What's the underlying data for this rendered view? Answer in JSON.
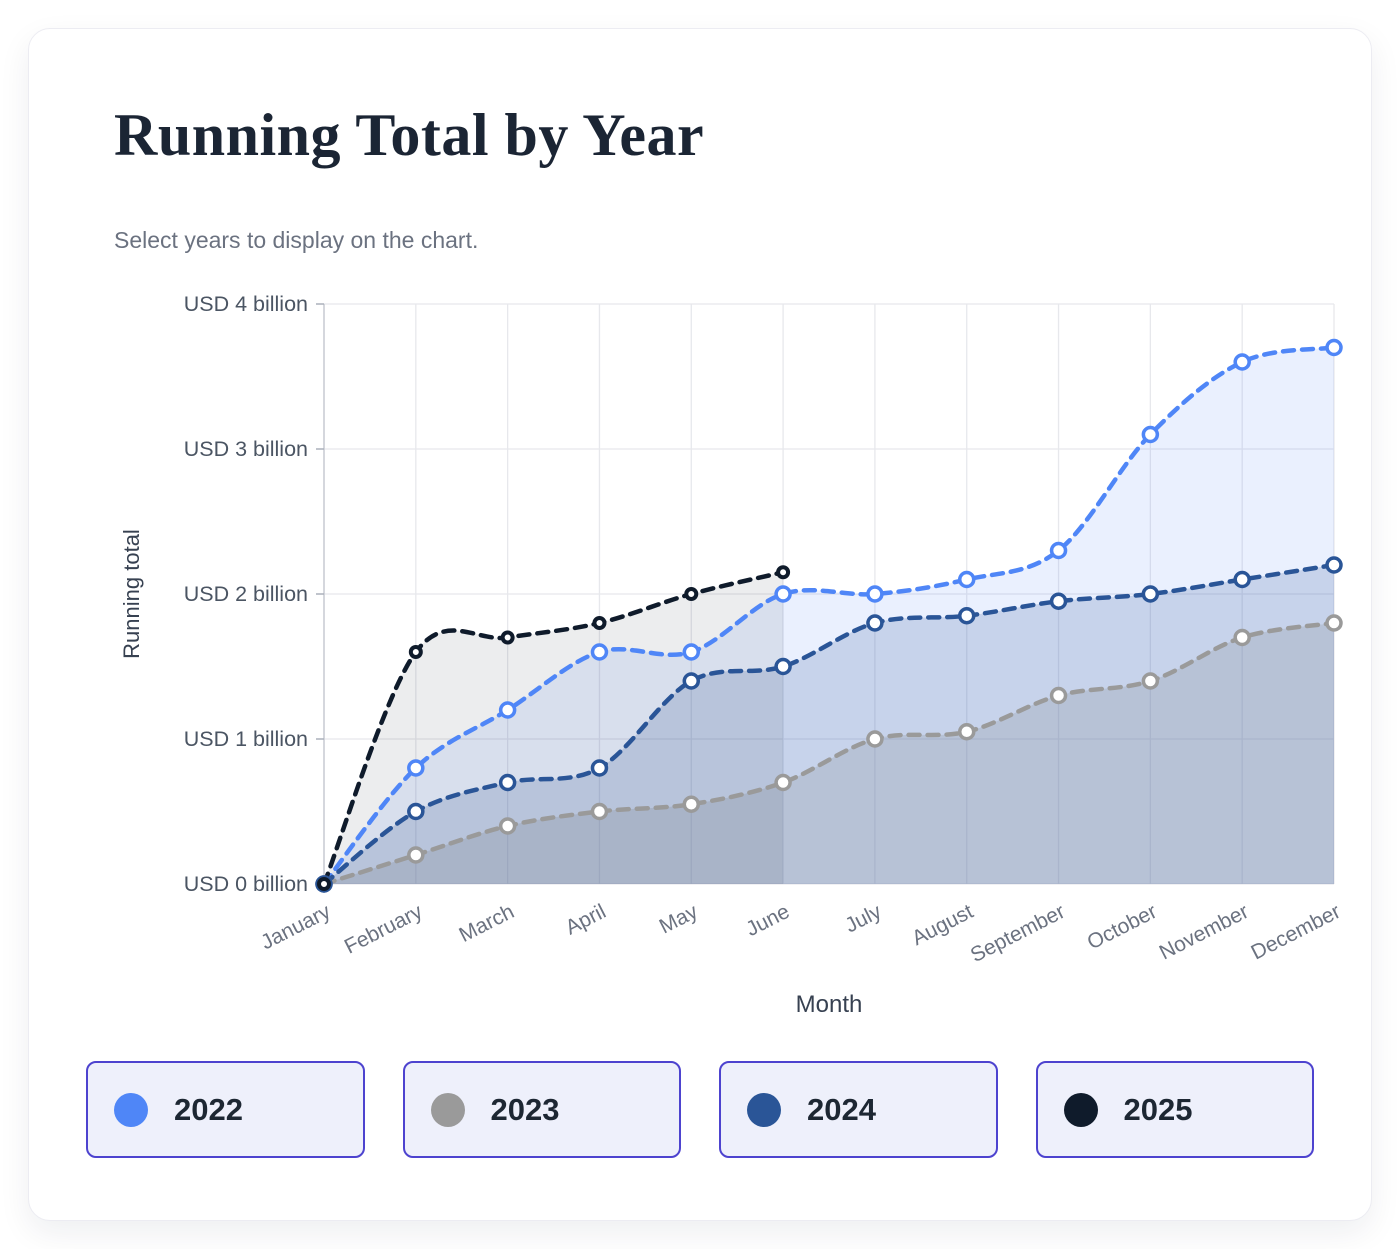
{
  "card": {
    "title": "Running Total by Year",
    "subtitle": "Select years to display on the chart."
  },
  "chart_data": {
    "type": "area",
    "x": [
      "January",
      "February",
      "March",
      "April",
      "May",
      "June",
      "July",
      "August",
      "September",
      "October",
      "November",
      "December"
    ],
    "xlabel": "Month",
    "ylabel": "Running total",
    "ylim": [
      0,
      4
    ],
    "yticks": [
      0,
      1,
      2,
      3,
      4
    ],
    "ytick_labels": [
      "USD 0 billion",
      "USD 1 billion",
      "USD 2 billion",
      "USD 3 billion",
      "USD 4 billion"
    ],
    "grid": true,
    "legend_position": "bottom",
    "series": [
      {
        "name": "2022",
        "color": "#4f86f7",
        "fill_opacity": 0.12,
        "values": [
          0,
          0.8,
          1.2,
          1.6,
          1.6,
          2.0,
          2.0,
          2.1,
          2.3,
          3.1,
          3.6,
          3.7
        ]
      },
      {
        "name": "2023",
        "color": "#9a9a9a",
        "fill_opacity": 0.25,
        "values": [
          0,
          0.2,
          0.4,
          0.5,
          0.55,
          0.7,
          1.0,
          1.05,
          1.3,
          1.4,
          1.7,
          1.8
        ]
      },
      {
        "name": "2024",
        "color": "#2a5597",
        "fill_opacity": 0.18,
        "values": [
          0,
          0.5,
          0.7,
          0.8,
          1.4,
          1.5,
          1.8,
          1.85,
          1.95,
          2.0,
          2.1,
          2.2
        ]
      },
      {
        "name": "2025",
        "color": "#0f1b2b",
        "fill_opacity": 0.08,
        "values": [
          0,
          1.6,
          1.7,
          1.8,
          2.0,
          2.15
        ]
      }
    ]
  },
  "legend": {
    "items": [
      {
        "label": "2022",
        "color": "#4f86f7"
      },
      {
        "label": "2023",
        "color": "#9a9a9a"
      },
      {
        "label": "2024",
        "color": "#2a5597"
      },
      {
        "label": "2025",
        "color": "#0f1b2b"
      }
    ]
  },
  "colors": {
    "accent_border": "#4d43cf",
    "legend_bg": "#eef0fb",
    "title": "#1b2534",
    "grid": "#e7e8ec"
  }
}
